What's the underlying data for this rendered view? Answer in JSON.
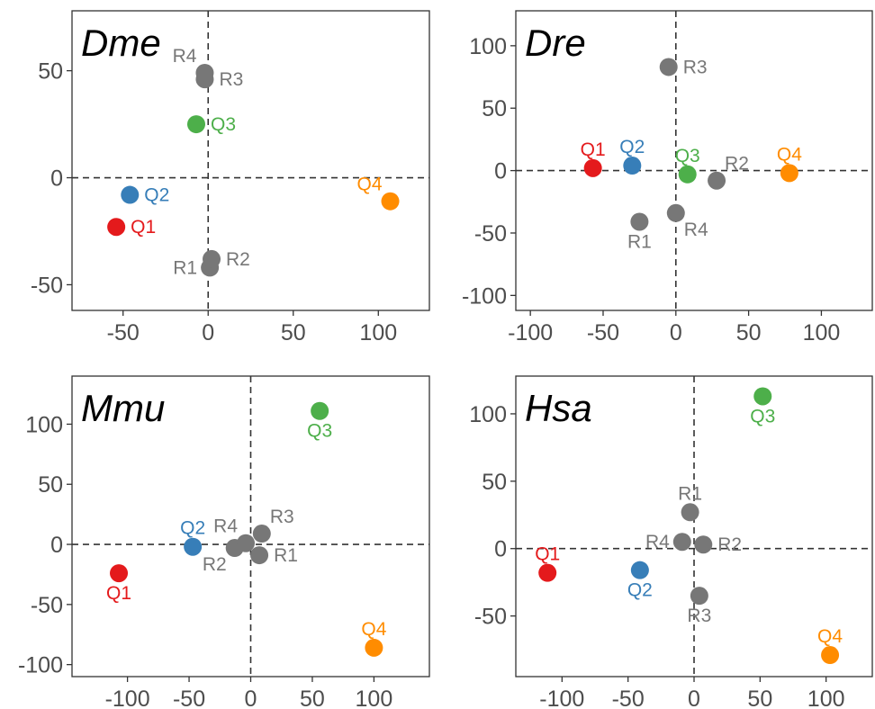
{
  "colors": {
    "Q1": "#e41a1c",
    "Q2": "#377eb8",
    "Q3": "#4daf4a",
    "Q4": "#ff8c00",
    "R": "#777777"
  },
  "chart_data": [
    {
      "type": "scatter",
      "title": "Dme",
      "xlim": [
        -80,
        130
      ],
      "ylim": [
        -62,
        78
      ],
      "xticks": [
        -50,
        0,
        50,
        100
      ],
      "yticks": [
        -50,
        0,
        50
      ],
      "grid": false,
      "reference_lines": {
        "x": 0,
        "y": 0
      },
      "points": [
        {
          "label": "Q1",
          "group": "Q1",
          "x": -54,
          "y": -23,
          "label_pos": "right"
        },
        {
          "label": "Q2",
          "group": "Q2",
          "x": -46,
          "y": -8,
          "label_pos": "right"
        },
        {
          "label": "Q3",
          "group": "Q3",
          "x": -7,
          "y": 25,
          "label_pos": "right"
        },
        {
          "label": "Q4",
          "group": "Q4",
          "x": 107,
          "y": -11,
          "label_pos": "above-left"
        },
        {
          "label": "R1",
          "group": "R",
          "x": 1,
          "y": -42,
          "label_pos": "left"
        },
        {
          "label": "R2",
          "group": "R",
          "x": 2,
          "y": -38,
          "label_pos": "right"
        },
        {
          "label": "R3",
          "group": "R",
          "x": -2,
          "y": 46,
          "label_pos": "right"
        },
        {
          "label": "R4",
          "group": "R",
          "x": -2,
          "y": 49,
          "label_pos": "above-left"
        }
      ]
    },
    {
      "type": "scatter",
      "title": "Dre",
      "xlim": [
        -110,
        135
      ],
      "ylim": [
        -112,
        128
      ],
      "xticks": [
        -100,
        -50,
        0,
        50,
        100
      ],
      "yticks": [
        -100,
        -50,
        0,
        50,
        100
      ],
      "grid": false,
      "reference_lines": {
        "x": 0,
        "y": 0
      },
      "points": [
        {
          "label": "Q1",
          "group": "Q1",
          "x": -57,
          "y": 2,
          "label_pos": "above"
        },
        {
          "label": "Q2",
          "group": "Q2",
          "x": -30,
          "y": 4,
          "label_pos": "above"
        },
        {
          "label": "Q3",
          "group": "Q3",
          "x": 8,
          "y": -3,
          "label_pos": "above"
        },
        {
          "label": "Q4",
          "group": "Q4",
          "x": 78,
          "y": -2,
          "label_pos": "above"
        },
        {
          "label": "R1",
          "group": "R",
          "x": -25,
          "y": -41,
          "label_pos": "below"
        },
        {
          "label": "R2",
          "group": "R",
          "x": 28,
          "y": -8,
          "label_pos": "above-right"
        },
        {
          "label": "R3",
          "group": "R",
          "x": -5,
          "y": 83,
          "label_pos": "right"
        },
        {
          "label": "R4",
          "group": "R",
          "x": 0,
          "y": -34,
          "label_pos": "below-right"
        }
      ]
    },
    {
      "type": "scatter",
      "title": "Mmu",
      "xlim": [
        -145,
        145
      ],
      "ylim": [
        -110,
        140
      ],
      "xticks": [
        -100,
        -50,
        0,
        50,
        100
      ],
      "yticks": [
        -100,
        -50,
        0,
        50,
        100
      ],
      "grid": false,
      "reference_lines": {
        "x": 0,
        "y": 0
      },
      "points": [
        {
          "label": "Q1",
          "group": "Q1",
          "x": -107,
          "y": -24,
          "label_pos": "below"
        },
        {
          "label": "Q2",
          "group": "Q2",
          "x": -47,
          "y": -2,
          "label_pos": "above"
        },
        {
          "label": "Q3",
          "group": "Q3",
          "x": 56,
          "y": 111,
          "label_pos": "below"
        },
        {
          "label": "Q4",
          "group": "Q4",
          "x": 100,
          "y": -86,
          "label_pos": "above"
        },
        {
          "label": "R1",
          "group": "R",
          "x": 7,
          "y": -9,
          "label_pos": "right"
        },
        {
          "label": "R2",
          "group": "R",
          "x": -13,
          "y": -3,
          "label_pos": "below-left"
        },
        {
          "label": "R3",
          "group": "R",
          "x": 9,
          "y": 9,
          "label_pos": "above-right"
        },
        {
          "label": "R4",
          "group": "R",
          "x": -4,
          "y": 1,
          "label_pos": "above-left"
        }
      ]
    },
    {
      "type": "scatter",
      "title": "Hsa",
      "xlim": [
        -135,
        135
      ],
      "ylim": [
        -95,
        128
      ],
      "xticks": [
        -100,
        -50,
        0,
        50,
        100
      ],
      "yticks": [
        -50,
        0,
        50,
        100
      ],
      "grid": false,
      "reference_lines": {
        "x": 0,
        "y": 0
      },
      "points": [
        {
          "label": "Q1",
          "group": "Q1",
          "x": -111,
          "y": -18,
          "label_pos": "above"
        },
        {
          "label": "Q2",
          "group": "Q2",
          "x": -41,
          "y": -16,
          "label_pos": "below"
        },
        {
          "label": "Q3",
          "group": "Q3",
          "x": 52,
          "y": 113,
          "label_pos": "below"
        },
        {
          "label": "Q4",
          "group": "Q4",
          "x": 103,
          "y": -79,
          "label_pos": "above"
        },
        {
          "label": "R1",
          "group": "R",
          "x": -3,
          "y": 27,
          "label_pos": "above"
        },
        {
          "label": "R2",
          "group": "R",
          "x": 7,
          "y": 3,
          "label_pos": "right"
        },
        {
          "label": "R3",
          "group": "R",
          "x": 4,
          "y": -35,
          "label_pos": "below"
        },
        {
          "label": "R4",
          "group": "R",
          "x": -9,
          "y": 5,
          "label_pos": "left"
        }
      ]
    }
  ]
}
